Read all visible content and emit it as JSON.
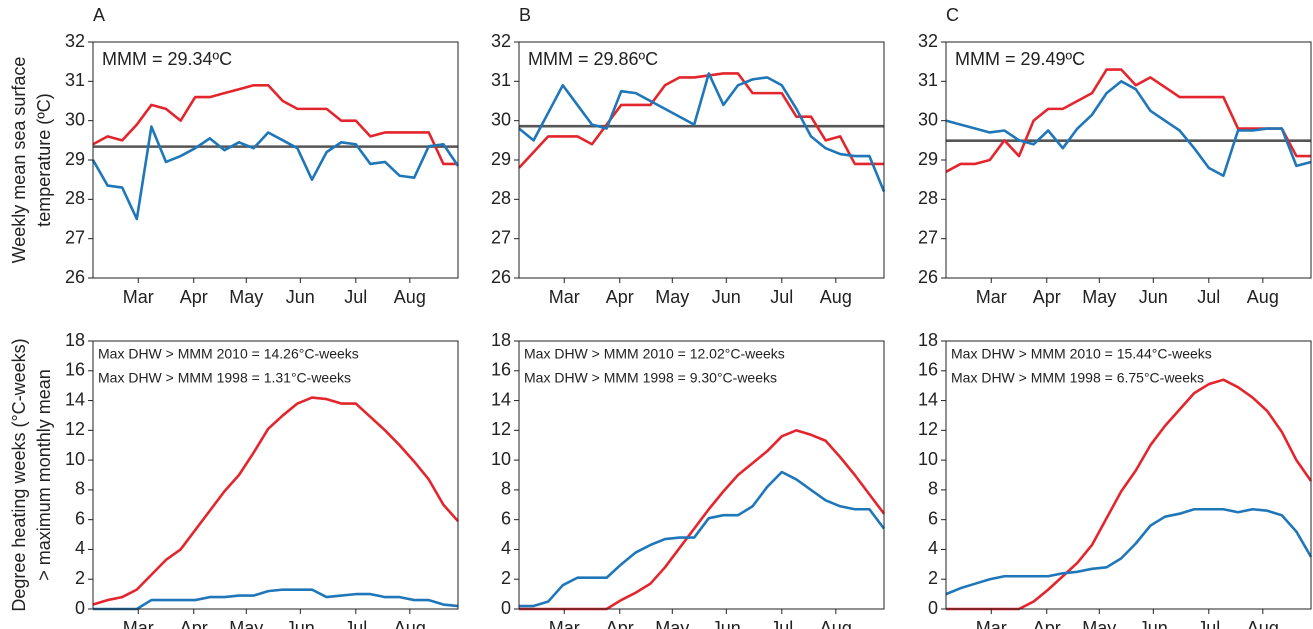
{
  "chart_data": [
    {
      "type": "line",
      "title": "A",
      "ylabel": [
        "Weekly mean sea surface",
        "temperature (ºC)"
      ],
      "annotations": [
        "MMM = 29.34ºC"
      ],
      "reference_line": {
        "value": 29.34,
        "color": "#555555"
      },
      "x": [
        0,
        1,
        2,
        3,
        4,
        5,
        6,
        7,
        8,
        9,
        10,
        11,
        12,
        13,
        14,
        15,
        16,
        17,
        18,
        19,
        20,
        21,
        22,
        23,
        24,
        25
      ],
      "xlim": [
        0,
        25
      ],
      "xticks": [
        {
          "value": 3.1,
          "label": "Mar"
        },
        {
          "value": 6.9,
          "label": "Apr"
        },
        {
          "value": 10.5,
          "label": "May"
        },
        {
          "value": 14.2,
          "label": "Jun"
        },
        {
          "value": 18.0,
          "label": "Jul"
        },
        {
          "value": 21.7,
          "label": "Aug"
        }
      ],
      "ylim": [
        26,
        32
      ],
      "yticks": [
        26,
        27,
        28,
        29,
        30,
        31,
        32
      ],
      "series": [
        {
          "color": "#e3262d",
          "values": [
            29.4,
            29.6,
            29.5,
            29.9,
            30.4,
            30.3,
            30.0,
            30.6,
            30.6,
            30.7,
            30.8,
            30.9,
            30.9,
            30.5,
            30.3,
            30.3,
            30.3,
            30.0,
            30.0,
            29.6,
            29.7,
            29.7,
            29.7,
            29.7,
            28.9,
            28.9
          ]
        },
        {
          "color": "#1f77b9",
          "values": [
            29.0,
            28.35,
            28.3,
            27.5,
            29.85,
            28.95,
            29.1,
            29.3,
            29.55,
            29.25,
            29.45,
            29.3,
            29.7,
            29.5,
            29.3,
            28.5,
            29.2,
            29.45,
            29.4,
            28.9,
            28.95,
            28.6,
            28.55,
            29.35,
            29.4,
            28.85
          ]
        }
      ]
    },
    {
      "type": "line",
      "title": "B",
      "annotations": [
        "MMM = 29.86ºC"
      ],
      "reference_line": {
        "value": 29.86,
        "color": "#555555"
      },
      "x": [
        0,
        1,
        2,
        3,
        4,
        5,
        6,
        7,
        8,
        9,
        10,
        11,
        12,
        13,
        14,
        15,
        16,
        17,
        18,
        19,
        20,
        21,
        22,
        23,
        24,
        25
      ],
      "xlim": [
        0,
        25
      ],
      "xticks": [
        {
          "value": 3.1,
          "label": "Mar"
        },
        {
          "value": 6.9,
          "label": "Apr"
        },
        {
          "value": 10.5,
          "label": "May"
        },
        {
          "value": 14.2,
          "label": "Jun"
        },
        {
          "value": 18.0,
          "label": "Jul"
        },
        {
          "value": 21.7,
          "label": "Aug"
        }
      ],
      "ylim": [
        26,
        32
      ],
      "yticks": [
        26,
        27,
        28,
        29,
        30,
        31,
        32
      ],
      "series": [
        {
          "color": "#e3262d",
          "values": [
            28.8,
            29.2,
            29.6,
            29.6,
            29.6,
            29.4,
            29.9,
            30.4,
            30.4,
            30.4,
            30.9,
            31.1,
            31.1,
            31.15,
            31.2,
            31.2,
            30.7,
            30.7,
            30.7,
            30.1,
            30.1,
            29.5,
            29.6,
            28.9,
            28.9,
            28.9
          ]
        },
        {
          "color": "#1f77b9",
          "values": [
            29.8,
            29.5,
            30.2,
            30.9,
            30.4,
            29.9,
            29.8,
            30.75,
            30.7,
            30.5,
            30.3,
            30.1,
            29.9,
            31.2,
            30.4,
            30.9,
            31.05,
            31.1,
            30.9,
            30.3,
            29.6,
            29.3,
            29.15,
            29.1,
            29.1,
            28.2
          ]
        }
      ]
    },
    {
      "type": "line",
      "title": "C",
      "annotations": [
        "MMM = 29.49ºC"
      ],
      "reference_line": {
        "value": 29.49,
        "color": "#555555"
      },
      "x": [
        0,
        1,
        2,
        3,
        4,
        5,
        6,
        7,
        8,
        9,
        10,
        11,
        12,
        13,
        14,
        15,
        16,
        17,
        18,
        19,
        20,
        21,
        22,
        23,
        24,
        25
      ],
      "xlim": [
        0,
        25
      ],
      "xticks": [
        {
          "value": 3.1,
          "label": "Mar"
        },
        {
          "value": 6.9,
          "label": "Apr"
        },
        {
          "value": 10.5,
          "label": "May"
        },
        {
          "value": 14.2,
          "label": "Jun"
        },
        {
          "value": 18.0,
          "label": "Jul"
        },
        {
          "value": 21.7,
          "label": "Aug"
        }
      ],
      "ylim": [
        26,
        32
      ],
      "yticks": [
        26,
        27,
        28,
        29,
        30,
        31,
        32
      ],
      "series": [
        {
          "color": "#e3262d",
          "values": [
            28.7,
            28.9,
            28.9,
            29.0,
            29.5,
            29.1,
            30.0,
            30.3,
            30.3,
            30.5,
            30.7,
            31.3,
            31.3,
            30.9,
            31.1,
            30.85,
            30.6,
            30.6,
            30.6,
            30.6,
            29.8,
            29.8,
            29.8,
            29.8,
            29.1,
            29.1
          ]
        },
        {
          "color": "#1f77b9",
          "values": [
            30.0,
            29.9,
            29.8,
            29.7,
            29.75,
            29.5,
            29.4,
            29.75,
            29.3,
            29.8,
            30.15,
            30.7,
            31.0,
            30.8,
            30.25,
            30.0,
            29.75,
            29.3,
            28.8,
            28.6,
            29.75,
            29.75,
            29.8,
            29.8,
            28.85,
            28.95
          ]
        }
      ]
    },
    {
      "type": "line",
      "ylabel": [
        "Degree heating weeks (°C-weeks)",
        "> maximum monthly mean"
      ],
      "annotations": [
        "Max DHW > MMM 2010 = 14.26°C-weeks",
        "Max DHW > MMM 1998 = 1.31°C-weeks"
      ],
      "x": [
        0,
        1,
        2,
        3,
        4,
        5,
        6,
        7,
        8,
        9,
        10,
        11,
        12,
        13,
        14,
        15,
        16,
        17,
        18,
        19,
        20,
        21,
        22,
        23,
        24,
        25
      ],
      "xlim": [
        0,
        25
      ],
      "xticks": [
        {
          "value": 3.1,
          "label": "Mar"
        },
        {
          "value": 6.9,
          "label": "Apr"
        },
        {
          "value": 10.5,
          "label": "May"
        },
        {
          "value": 14.2,
          "label": "Jun"
        },
        {
          "value": 18.0,
          "label": "Jul"
        },
        {
          "value": 21.7,
          "label": "Aug"
        }
      ],
      "ylim": [
        0,
        18
      ],
      "yticks": [
        0,
        2,
        4,
        6,
        8,
        10,
        12,
        14,
        16,
        18
      ],
      "series": [
        {
          "color": "#e3262d",
          "values": [
            0.3,
            0.6,
            0.8,
            1.3,
            2.3,
            3.3,
            4.0,
            5.3,
            6.6,
            7.9,
            9.0,
            10.5,
            12.1,
            13.0,
            13.8,
            14.2,
            14.1,
            13.8,
            13.8,
            12.9,
            12.0,
            11.0,
            9.9,
            8.7,
            7.0,
            5.9
          ]
        },
        {
          "color": "#1f77b9",
          "values": [
            0,
            0,
            0,
            0,
            0.6,
            0.6,
            0.6,
            0.6,
            0.8,
            0.8,
            0.9,
            0.9,
            1.2,
            1.3,
            1.3,
            1.3,
            0.8,
            0.9,
            1.0,
            1.0,
            0.8,
            0.8,
            0.6,
            0.6,
            0.3,
            0.2
          ]
        }
      ]
    },
    {
      "type": "line",
      "annotations": [
        "Max DHW > MMM 2010 = 12.02°C-weeks",
        "Max DHW > MMM 1998 = 9.30°C-weeks"
      ],
      "x": [
        0,
        1,
        2,
        3,
        4,
        5,
        6,
        7,
        8,
        9,
        10,
        11,
        12,
        13,
        14,
        15,
        16,
        17,
        18,
        19,
        20,
        21,
        22,
        23,
        24,
        25
      ],
      "xlim": [
        0,
        25
      ],
      "xticks": [
        {
          "value": 3.1,
          "label": "Mar"
        },
        {
          "value": 6.9,
          "label": "Apr"
        },
        {
          "value": 10.5,
          "label": "May"
        },
        {
          "value": 14.2,
          "label": "Jun"
        },
        {
          "value": 18.0,
          "label": "Jul"
        },
        {
          "value": 21.7,
          "label": "Aug"
        }
      ],
      "ylim": [
        0,
        18
      ],
      "yticks": [
        0,
        2,
        4,
        6,
        8,
        10,
        12,
        14,
        16,
        18
      ],
      "series": [
        {
          "color": "#e3262d",
          "values": [
            0,
            0,
            0,
            0,
            0,
            0,
            0,
            0.6,
            1.1,
            1.7,
            2.8,
            4.1,
            5.4,
            6.7,
            7.9,
            9.0,
            9.8,
            10.6,
            11.6,
            12.0,
            11.7,
            11.3,
            10.2,
            9.0,
            7.7,
            6.4
          ]
        },
        {
          "color": "#1f77b9",
          "values": [
            0.2,
            0.2,
            0.5,
            1.6,
            2.1,
            2.1,
            2.1,
            3.0,
            3.8,
            4.3,
            4.7,
            4.8,
            4.8,
            6.1,
            6.3,
            6.3,
            6.9,
            8.2,
            9.2,
            8.7,
            8.0,
            7.3,
            6.9,
            6.7,
            6.7,
            5.4
          ]
        }
      ]
    },
    {
      "type": "line",
      "annotations": [
        "Max DHW > MMM 2010 = 15.44°C-weeks",
        "Max DHW > MMM 1998 = 6.75°C-weeks"
      ],
      "x": [
        0,
        1,
        2,
        3,
        4,
        5,
        6,
        7,
        8,
        9,
        10,
        11,
        12,
        13,
        14,
        15,
        16,
        17,
        18,
        19,
        20,
        21,
        22,
        23,
        24,
        25
      ],
      "xlim": [
        0,
        25
      ],
      "xticks": [
        {
          "value": 3.1,
          "label": "Mar"
        },
        {
          "value": 6.9,
          "label": "Apr"
        },
        {
          "value": 10.5,
          "label": "May"
        },
        {
          "value": 14.2,
          "label": "Jun"
        },
        {
          "value": 18.0,
          "label": "Jul"
        },
        {
          "value": 21.7,
          "label": "Aug"
        }
      ],
      "ylim": [
        0,
        18
      ],
      "yticks": [
        0,
        2,
        4,
        6,
        8,
        10,
        12,
        14,
        16,
        18
      ],
      "series": [
        {
          "color": "#e3262d",
          "values": [
            0,
            0,
            0,
            0,
            0,
            0,
            0.5,
            1.3,
            2.2,
            3.1,
            4.3,
            6.1,
            7.9,
            9.3,
            11.0,
            12.3,
            13.4,
            14.5,
            15.1,
            15.4,
            14.9,
            14.2,
            13.3,
            11.9,
            10.0,
            8.6
          ]
        },
        {
          "color": "#1f77b9",
          "values": [
            1.0,
            1.4,
            1.7,
            2.0,
            2.2,
            2.2,
            2.2,
            2.2,
            2.4,
            2.5,
            2.7,
            2.8,
            3.4,
            4.4,
            5.6,
            6.2,
            6.4,
            6.7,
            6.7,
            6.7,
            6.5,
            6.7,
            6.6,
            6.3,
            5.2,
            3.5
          ]
        }
      ]
    }
  ]
}
